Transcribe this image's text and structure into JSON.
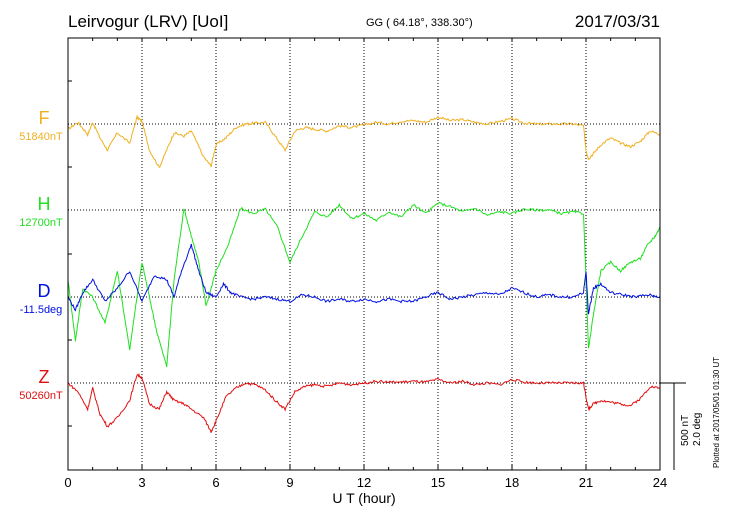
{
  "header": {
    "station": "Leirvogur (LRV)  [UoI]",
    "coords": "GG ( 64.18°, 338.30°)",
    "date": "2017/03/31"
  },
  "chart_data": {
    "type": "line",
    "xlabel": "U T (hour)",
    "xlim": [
      0,
      24
    ],
    "xticks": [
      "0",
      "3",
      "6",
      "9",
      "12",
      "15",
      "18",
      "21",
      "24"
    ],
    "grid": true,
    "scale_bar": {
      "line1": "500 nT",
      "line2": "2.0 deg"
    },
    "plotted_note": "Plotted at 2017/05/01 01:30 UT",
    "series": [
      {
        "name": "F",
        "baseline": "51840nT",
        "color": "#f0b020",
        "x": [
          0,
          0.4,
          0.8,
          1.0,
          1.3,
          1.6,
          2.0,
          2.5,
          2.8,
          3.0,
          3.3,
          3.7,
          4.0,
          4.3,
          4.7,
          5.0,
          5.5,
          5.8,
          6.0,
          6.4,
          6.8,
          7.2,
          7.6,
          8.0,
          8.4,
          8.8,
          9.2,
          9.6,
          10.0,
          10.5,
          11.0,
          11.5,
          12.0,
          12.5,
          13.0,
          13.5,
          14.0,
          14.5,
          15.0,
          15.5,
          16.0,
          16.5,
          17.0,
          17.5,
          18.0,
          18.5,
          19.0,
          19.5,
          20.0,
          20.5,
          20.9,
          21.0,
          21.1,
          21.3,
          21.6,
          22.0,
          22.4,
          22.8,
          23.2,
          23.6,
          24.0
        ],
        "values": [
          -30,
          10,
          -60,
          10,
          -80,
          -150,
          -50,
          -110,
          40,
          15,
          -150,
          -250,
          -150,
          -50,
          -70,
          -40,
          -190,
          -240,
          -120,
          -80,
          -20,
          0,
          5,
          10,
          -70,
          -150,
          -40,
          -20,
          -30,
          -40,
          -10,
          -20,
          -5,
          10,
          0,
          15,
          20,
          10,
          40,
          20,
          25,
          10,
          0,
          15,
          30,
          5,
          0,
          0,
          0,
          0,
          -10,
          -150,
          -200,
          -170,
          -120,
          -80,
          -110,
          -130,
          -100,
          -40,
          -60
        ]
      },
      {
        "name": "H",
        "baseline": "12700nT",
        "color": "#20e020",
        "x": [
          0,
          0.3,
          0.6,
          1.0,
          1.5,
          2.0,
          2.5,
          3.0,
          3.3,
          3.6,
          4.0,
          4.3,
          4.7,
          5.0,
          5.3,
          5.6,
          6.0,
          6.5,
          7.0,
          7.5,
          8.0,
          8.5,
          9.0,
          9.5,
          10.0,
          10.5,
          11.0,
          11.5,
          12.0,
          12.5,
          13.0,
          13.5,
          14.0,
          14.5,
          15.0,
          15.5,
          16.0,
          16.5,
          17.0,
          17.5,
          18.0,
          18.5,
          19.0,
          19.5,
          20.0,
          20.5,
          20.9,
          21.0,
          21.1,
          21.3,
          21.6,
          22.0,
          22.4,
          22.8,
          23.2,
          23.5,
          23.8,
          24.0
        ],
        "values": [
          -400,
          -750,
          -450,
          -500,
          -650,
          -350,
          -800,
          -300,
          -500,
          -700,
          -900,
          -400,
          10,
          -150,
          -300,
          -550,
          -350,
          -200,
          10,
          -20,
          5,
          -100,
          -300,
          -150,
          -10,
          -40,
          30,
          -50,
          -20,
          -60,
          -10,
          -40,
          30,
          -20,
          40,
          20,
          -10,
          10,
          -30,
          -10,
          -20,
          5,
          0,
          0,
          -20,
          -10,
          -20,
          -400,
          -800,
          -600,
          -350,
          -300,
          -350,
          -300,
          -280,
          -200,
          -150,
          -100
        ]
      },
      {
        "name": "D",
        "baseline": "-11.5deg",
        "color": "#0010e0",
        "x": [
          0,
          0.3,
          0.6,
          1.0,
          1.5,
          2.0,
          2.5,
          3.0,
          3.5,
          4.0,
          4.3,
          4.6,
          5.0,
          5.3,
          5.6,
          6.0,
          6.3,
          6.6,
          7.0,
          7.5,
          8.0,
          8.5,
          9.0,
          9.5,
          10.0,
          10.5,
          11.0,
          11.5,
          12.0,
          12.5,
          13.0,
          13.5,
          14.0,
          14.5,
          15.0,
          15.5,
          16.0,
          16.5,
          17.0,
          17.5,
          18.0,
          18.5,
          19.0,
          19.5,
          20.0,
          20.5,
          20.9,
          21.0,
          21.1,
          21.3,
          21.6,
          22.0,
          22.5,
          23.0,
          23.5,
          24.0
        ],
        "values": [
          0.0,
          -0.3,
          0.1,
          0.4,
          -0.1,
          0.2,
          0.6,
          -0.1,
          0.5,
          0.4,
          0.0,
          0.6,
          1.2,
          0.6,
          0.1,
          0.0,
          0.3,
          0.1,
          0.0,
          -0.05,
          0.0,
          -0.05,
          -0.1,
          0.05,
          0.0,
          -0.1,
          -0.05,
          -0.1,
          -0.05,
          -0.1,
          -0.05,
          -0.1,
          -0.1,
          0.0,
          0.1,
          -0.05,
          0.0,
          0.05,
          0.1,
          0.05,
          0.2,
          0.1,
          0.0,
          0.05,
          0.0,
          0.0,
          0.1,
          0.6,
          -0.4,
          0.2,
          0.3,
          0.1,
          0.05,
          0.0,
          0.05,
          0.0
        ]
      },
      {
        "name": "Z",
        "baseline": "50260nT",
        "color": "#e01010",
        "x": [
          0,
          0.4,
          0.8,
          1.0,
          1.3,
          1.6,
          2.0,
          2.5,
          2.8,
          3.0,
          3.3,
          3.7,
          4.0,
          4.3,
          4.7,
          5.0,
          5.5,
          5.8,
          6.0,
          6.4,
          6.8,
          7.2,
          7.6,
          8.0,
          8.4,
          8.8,
          9.2,
          9.6,
          10.0,
          10.5,
          11.0,
          11.5,
          12.0,
          12.5,
          13.0,
          13.5,
          14.0,
          14.5,
          15.0,
          15.5,
          16.0,
          16.5,
          17.0,
          17.5,
          18.0,
          18.5,
          19.0,
          19.5,
          20.0,
          20.5,
          20.9,
          21.0,
          21.1,
          21.3,
          21.6,
          22.0,
          22.4,
          22.8,
          23.2,
          23.6,
          24.0
        ],
        "values": [
          0,
          -50,
          -150,
          -30,
          -180,
          -250,
          -200,
          -100,
          50,
          30,
          -120,
          -150,
          -50,
          -100,
          -120,
          -150,
          -200,
          -280,
          -220,
          -80,
          -30,
          0,
          -10,
          -40,
          -100,
          -150,
          -50,
          -20,
          -10,
          -20,
          0,
          -10,
          0,
          10,
          5,
          5,
          10,
          5,
          20,
          0,
          10,
          -10,
          0,
          -10,
          20,
          5,
          0,
          0,
          0,
          0,
          0,
          -80,
          -150,
          -120,
          -100,
          -110,
          -120,
          -130,
          -90,
          -20,
          -30
        ]
      }
    ]
  }
}
